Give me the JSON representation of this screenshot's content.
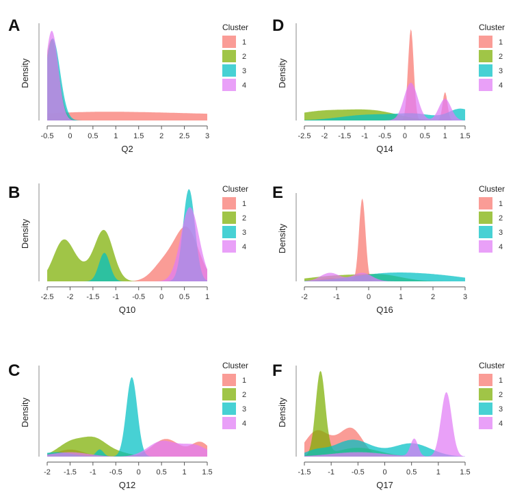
{
  "legend": {
    "title": "Cluster",
    "colors": [
      "#F8766D",
      "#7CAE00",
      "#00BFC4",
      "#E07CF5"
    ]
  },
  "chart_data": [
    {
      "panel": "A",
      "type": "area",
      "xlabel": "Q2",
      "ylabel": "Density",
      "xlim": [
        -0.5,
        3
      ],
      "xticks": [
        "-0.5",
        "0",
        "0.5",
        "1",
        "1.5",
        "2",
        "2.5",
        "3"
      ],
      "series": [
        {
          "name": "1",
          "components": [
            [
              0.1,
              1.6,
              0.06
            ],
            [
              3.0,
              2.3,
              0.06
            ]
          ]
        },
        {
          "name": "2",
          "components": [
            [
              -0.4,
              0.15,
              0.86
            ]
          ]
        },
        {
          "name": "3",
          "components": [
            [
              -0.38,
              0.16,
              0.87
            ]
          ]
        },
        {
          "name": "4",
          "components": [
            [
              -0.4,
              0.14,
              0.95
            ]
          ]
        }
      ]
    },
    {
      "panel": "B",
      "type": "area",
      "xlabel": "Q10",
      "ylabel": "Density",
      "xlim": [
        -2.5,
        1
      ],
      "xticks": [
        "-2.5",
        "-2",
        "-1.5",
        "-1",
        "-0.5",
        "0",
        "0.5",
        "1"
      ],
      "series": [
        {
          "name": "1",
          "components": [
            [
              0.55,
              0.26,
              0.55
            ],
            [
              0.05,
              0.25,
              0.18
            ]
          ]
        },
        {
          "name": "2",
          "components": [
            [
              -2.15,
              0.22,
              0.4
            ],
            [
              -1.25,
              0.2,
              0.5
            ],
            [
              -1.7,
              0.3,
              0.12
            ]
          ]
        },
        {
          "name": "3",
          "components": [
            [
              -1.25,
              0.12,
              0.3
            ],
            [
              0.6,
              0.13,
              0.97
            ]
          ]
        },
        {
          "name": "4",
          "components": [
            [
              0.62,
              0.2,
              0.78
            ]
          ]
        }
      ]
    },
    {
      "panel": "C",
      "type": "area",
      "xlabel": "Q12",
      "ylabel": "Density",
      "xlim": [
        -2,
        1.5
      ],
      "xticks": [
        "-2",
        "-1.5",
        "-1",
        "-0.5",
        "0",
        "0.5",
        "1",
        "1.5"
      ],
      "series": [
        {
          "name": "1",
          "components": [
            [
              0.6,
              0.3,
              0.2
            ],
            [
              1.35,
              0.2,
              0.16
            ],
            [
              -1.5,
              0.3,
              0.08
            ]
          ]
        },
        {
          "name": "2",
          "components": [
            [
              -1.45,
              0.3,
              0.17
            ],
            [
              -0.95,
              0.25,
              0.16
            ],
            [
              -0.5,
              0.3,
              0.05
            ]
          ]
        },
        {
          "name": "3",
          "components": [
            [
              -0.15,
              0.12,
              0.9
            ],
            [
              -0.85,
              0.08,
              0.08
            ],
            [
              -1.8,
              0.35,
              0.05
            ]
          ]
        },
        {
          "name": "4",
          "components": [
            [
              0.5,
              0.3,
              0.17
            ],
            [
              1.2,
              0.3,
              0.13
            ],
            [
              -1.5,
              0.4,
              0.05
            ]
          ]
        }
      ]
    },
    {
      "panel": "D",
      "type": "area",
      "xlabel": "Q14",
      "ylabel": "Density",
      "xlim": [
        -2.5,
        1.5
      ],
      "xticks": [
        "-2.5",
        "-2",
        "-1.5",
        "-1",
        "-0.5",
        "0",
        "0.5",
        "1",
        "1.5"
      ],
      "series": [
        {
          "name": "1",
          "components": [
            [
              0.15,
              0.07,
              0.97
            ],
            [
              1.0,
              0.06,
              0.3
            ]
          ]
        },
        {
          "name": "2",
          "components": [
            [
              -2.0,
              0.8,
              0.1
            ],
            [
              -0.7,
              0.6,
              0.08
            ]
          ]
        },
        {
          "name": "3",
          "components": [
            [
              -0.9,
              0.7,
              0.06
            ],
            [
              0.3,
              0.5,
              0.06
            ],
            [
              1.4,
              0.3,
              0.12
            ]
          ]
        },
        {
          "name": "4",
          "components": [
            [
              0.15,
              0.17,
              0.4
            ],
            [
              1.0,
              0.15,
              0.23
            ]
          ]
        }
      ]
    },
    {
      "panel": "E",
      "type": "area",
      "xlabel": "Q16",
      "ylabel": "Density",
      "xlim": [
        -2,
        3
      ],
      "xticks": [
        "-2",
        "-1",
        "0",
        "1",
        "2",
        "3"
      ],
      "series": [
        {
          "name": "1",
          "components": [
            [
              -0.2,
              0.1,
              0.97
            ],
            [
              -1.2,
              0.3,
              0.04
            ]
          ]
        },
        {
          "name": "2",
          "components": [
            [
              -0.8,
              1.0,
              0.07
            ],
            [
              0.5,
              0.6,
              0.05
            ]
          ]
        },
        {
          "name": "3",
          "components": [
            [
              0.8,
              1.2,
              0.1
            ],
            [
              2.5,
              0.8,
              0.03
            ]
          ]
        },
        {
          "name": "4",
          "components": [
            [
              -1.2,
              0.3,
              0.1
            ],
            [
              -0.2,
              0.3,
              0.1
            ]
          ]
        }
      ]
    },
    {
      "panel": "F",
      "type": "area",
      "xlabel": "Q17",
      "ylabel": "Density",
      "xlim": [
        -1.5,
        1.5
      ],
      "xticks": [
        "-1.5",
        "-1",
        "-0.5",
        "0",
        "0.5",
        "1",
        "1.5"
      ],
      "series": [
        {
          "name": "1",
          "components": [
            [
              -1.3,
              0.2,
              0.22
            ],
            [
              -0.6,
              0.2,
              0.25
            ],
            [
              -0.95,
              0.3,
              0.14
            ]
          ]
        },
        {
          "name": "2",
          "components": [
            [
              -1.2,
              0.09,
              0.95
            ],
            [
              -0.5,
              0.4,
              0.1
            ]
          ]
        },
        {
          "name": "3",
          "components": [
            [
              -0.6,
              0.35,
              0.19
            ],
            [
              0.5,
              0.35,
              0.15
            ],
            [
              -1.3,
              0.2,
              0.06
            ]
          ]
        },
        {
          "name": "4",
          "components": [
            [
              1.15,
              0.1,
              0.73
            ],
            [
              0.55,
              0.07,
              0.2
            ],
            [
              -0.5,
              0.5,
              0.05
            ]
          ]
        }
      ]
    }
  ]
}
